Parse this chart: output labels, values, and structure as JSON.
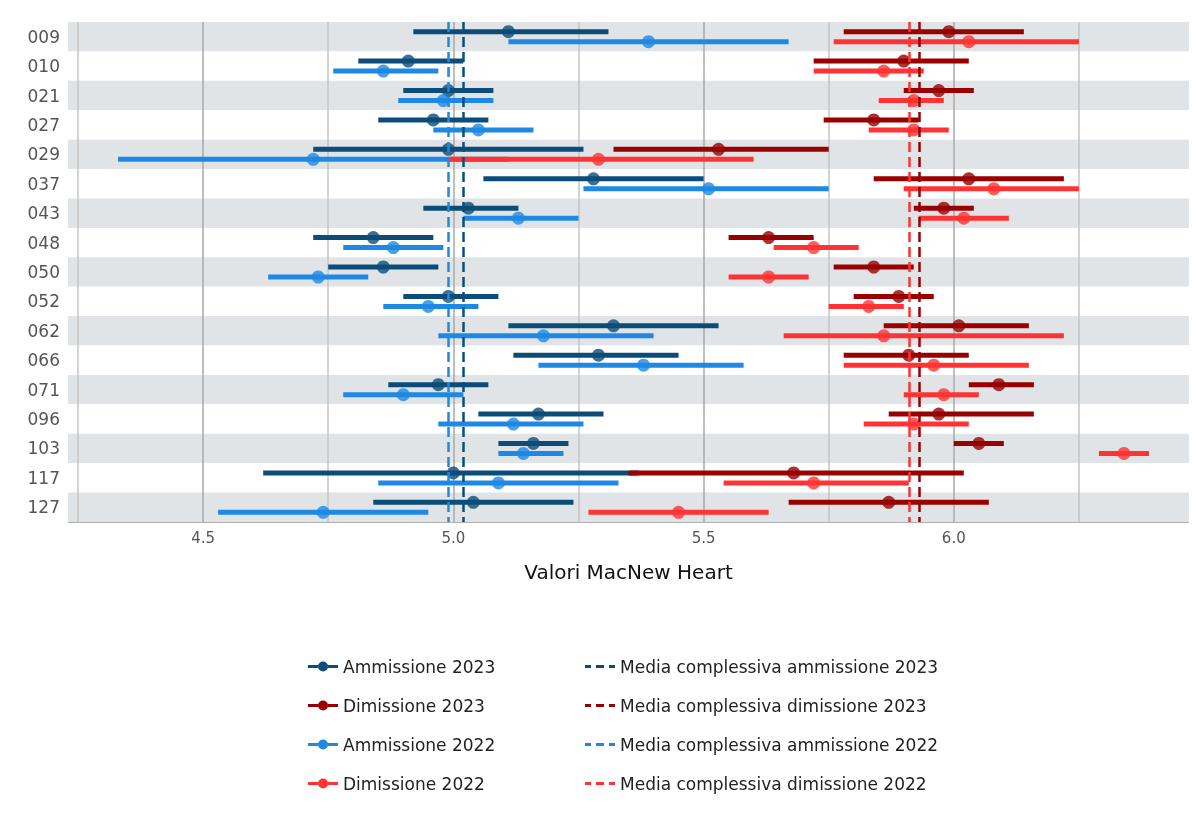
{
  "chart_data": {
    "type": "scatter",
    "orientation": "horizontal",
    "xlabel": "Valori MacNew Heart",
    "marker": "circle",
    "grid": "x",
    "legend": "bottom",
    "categories": [
      "009",
      "010",
      "021",
      "027",
      "029",
      "037",
      "043",
      "048",
      "050",
      "052",
      "062",
      "066",
      "071",
      "096",
      "103",
      "117",
      "127"
    ],
    "xlim": [
      4.23,
      6.47
    ],
    "xticks": [
      {
        "value": 4.25,
        "label": null
      },
      {
        "value": 4.5,
        "label": "4.5"
      },
      {
        "value": 4.75,
        "label": null
      },
      {
        "value": 5,
        "label": "5.0"
      },
      {
        "value": 5.25,
        "label": null
      },
      {
        "value": 5.5,
        "label": "5.5"
      },
      {
        "value": 5.75,
        "label": null
      },
      {
        "value": 6,
        "label": "6.0"
      },
      {
        "value": 6.25,
        "label": null
      }
    ],
    "series": [
      {
        "name": "Ammissione 2023",
        "color": "#0b4d78",
        "values": [
          5.11,
          4.91,
          4.99,
          4.96,
          4.99,
          5.28,
          5.03,
          4.84,
          4.86,
          4.99,
          5.32,
          5.29,
          4.97,
          5.17,
          5.16,
          5.0,
          5.04
        ],
        "errors": [
          [
            4.92,
            5.31
          ],
          [
            4.81,
            5.02
          ],
          [
            4.9,
            5.08
          ],
          [
            4.85,
            5.07
          ],
          [
            4.72,
            5.26
          ],
          [
            5.06,
            5.5
          ],
          [
            4.94,
            5.13
          ],
          [
            4.72,
            4.96
          ],
          [
            4.75,
            4.97
          ],
          [
            4.9,
            5.09
          ],
          [
            5.11,
            5.53
          ],
          [
            5.12,
            5.45
          ],
          [
            4.87,
            5.07
          ],
          [
            5.05,
            5.3
          ],
          [
            5.09,
            5.23
          ],
          [
            4.62,
            5.37
          ],
          [
            4.84,
            5.24
          ]
        ]
      },
      {
        "name": "Dimissione 2023",
        "color": "#990000",
        "values": [
          5.99,
          5.9,
          5.97,
          5.84,
          5.53,
          6.03,
          5.98,
          5.63,
          5.84,
          5.89,
          6.01,
          5.91,
          6.09,
          5.97,
          6.05,
          5.68,
          5.87
        ],
        "errors": [
          [
            5.78,
            6.14
          ],
          [
            5.72,
            6.03
          ],
          [
            5.9,
            6.04
          ],
          [
            5.74,
            5.93
          ],
          [
            5.32,
            5.75
          ],
          [
            5.84,
            6.22
          ],
          [
            5.92,
            6.04
          ],
          [
            5.55,
            5.72
          ],
          [
            5.76,
            5.92
          ],
          [
            5.8,
            5.96
          ],
          [
            5.86,
            6.15
          ],
          [
            5.78,
            6.03
          ],
          [
            6.03,
            6.16
          ],
          [
            5.87,
            6.16
          ],
          [
            6.0,
            6.1
          ],
          [
            5.35,
            6.02
          ],
          [
            5.67,
            6.07
          ]
        ]
      },
      {
        "name": "Ammissione 2022",
        "color": "#1e88e5",
        "values": [
          5.39,
          4.86,
          4.98,
          5.05,
          4.72,
          5.51,
          5.13,
          4.88,
          4.73,
          4.95,
          5.18,
          5.38,
          4.9,
          5.12,
          5.14,
          5.09,
          4.74
        ],
        "errors": [
          [
            5.11,
            5.67
          ],
          [
            4.76,
            4.97
          ],
          [
            4.89,
            5.08
          ],
          [
            4.96,
            5.16
          ],
          [
            4.33,
            5.11
          ],
          [
            5.26,
            5.75
          ],
          [
            5.02,
            5.25
          ],
          [
            4.78,
            4.98
          ],
          [
            4.63,
            4.83
          ],
          [
            4.86,
            5.05
          ],
          [
            4.97,
            5.4
          ],
          [
            5.17,
            5.58
          ],
          [
            4.78,
            5.02
          ],
          [
            4.97,
            5.26
          ],
          [
            5.09,
            5.22
          ],
          [
            4.85,
            5.33
          ],
          [
            4.53,
            4.95
          ]
        ]
      },
      {
        "name": "Dimissione 2022",
        "color": "#ff3333",
        "values": [
          6.03,
          5.86,
          5.92,
          5.92,
          5.29,
          6.08,
          6.02,
          5.72,
          5.63,
          5.83,
          5.86,
          5.96,
          5.98,
          5.92,
          6.34,
          5.72,
          5.45
        ],
        "errors": [
          [
            5.76,
            6.25
          ],
          [
            5.72,
            5.94
          ],
          [
            5.85,
            5.98
          ],
          [
            5.83,
            5.99
          ],
          [
            4.99,
            5.6
          ],
          [
            5.9,
            6.25
          ],
          [
            5.93,
            6.11
          ],
          [
            5.64,
            5.81
          ],
          [
            5.55,
            5.71
          ],
          [
            5.75,
            5.9
          ],
          [
            5.66,
            6.22
          ],
          [
            5.78,
            6.15
          ],
          [
            5.9,
            6.05
          ],
          [
            5.82,
            6.03
          ],
          [
            6.29,
            6.39
          ],
          [
            5.54,
            5.91
          ],
          [
            5.27,
            5.63
          ]
        ]
      }
    ],
    "ref_lines": [
      {
        "axis": "x",
        "value": 5.02,
        "label": "Media complessiva ammissione 2023",
        "color": "#0b4d78",
        "line_style": "dashed"
      },
      {
        "axis": "x",
        "value": 5.93,
        "label": "Media complessiva dimissione 2023",
        "color": "#990000",
        "line_style": "dashed"
      },
      {
        "axis": "x",
        "value": 4.99,
        "label": "Media complessiva ammissione 2022",
        "color": "#1e88e5",
        "line_style": "dashed"
      },
      {
        "axis": "x",
        "value": 5.91,
        "label": "Media complessiva dimissione 2022",
        "color": "#ff3333",
        "line_style": "dashed"
      }
    ]
  }
}
